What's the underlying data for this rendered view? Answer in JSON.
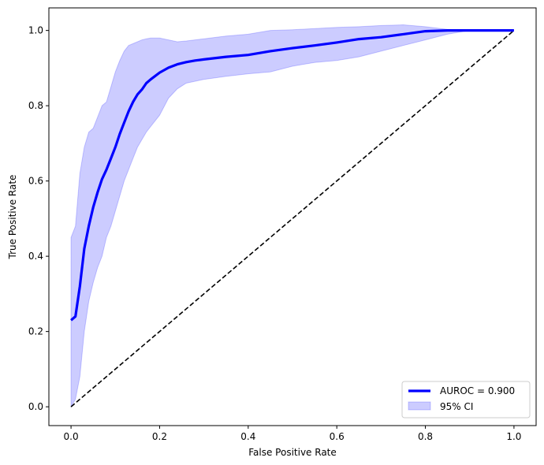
{
  "chart_data": {
    "type": "line",
    "xlabel": "False Positive Rate",
    "ylabel": "True Positive Rate",
    "xlim": [
      -0.05,
      1.05
    ],
    "ylim": [
      -0.05,
      1.06
    ],
    "xticks": [
      "0.0",
      "0.2",
      "0.4",
      "0.6",
      "0.8",
      "1.0"
    ],
    "yticks": [
      "0.0",
      "0.2",
      "0.4",
      "0.6",
      "0.8",
      "1.0"
    ],
    "grid": false,
    "legend_position": "lower-right",
    "series": [
      {
        "name": "AUROC = 0.900",
        "color": "#0000ff",
        "x": [
          0.0,
          0.01,
          0.02,
          0.03,
          0.04,
          0.05,
          0.06,
          0.07,
          0.08,
          0.09,
          0.1,
          0.11,
          0.12,
          0.13,
          0.14,
          0.15,
          0.16,
          0.17,
          0.18,
          0.2,
          0.22,
          0.24,
          0.26,
          0.28,
          0.3,
          0.35,
          0.4,
          0.45,
          0.5,
          0.55,
          0.6,
          0.65,
          0.7,
          0.75,
          0.8,
          0.85,
          0.9,
          0.95,
          1.0
        ],
        "y": [
          0.23,
          0.24,
          0.32,
          0.42,
          0.48,
          0.53,
          0.57,
          0.605,
          0.63,
          0.66,
          0.69,
          0.725,
          0.755,
          0.785,
          0.81,
          0.83,
          0.843,
          0.86,
          0.87,
          0.888,
          0.901,
          0.91,
          0.916,
          0.92,
          0.923,
          0.93,
          0.935,
          0.945,
          0.953,
          0.96,
          0.968,
          0.977,
          0.982,
          0.99,
          0.998,
          1.0,
          1.0,
          1.0,
          1.0
        ]
      },
      {
        "name": "",
        "color": "#000000",
        "style": "dashed",
        "x": [
          0.0,
          1.0
        ],
        "y": [
          0.0,
          1.0
        ]
      }
    ],
    "band": {
      "name": "95% CI",
      "color": "#0000ff",
      "x": [
        0.0,
        0.01,
        0.02,
        0.03,
        0.04,
        0.05,
        0.06,
        0.07,
        0.08,
        0.09,
        0.1,
        0.11,
        0.12,
        0.13,
        0.14,
        0.15,
        0.16,
        0.17,
        0.18,
        0.2,
        0.22,
        0.24,
        0.26,
        0.28,
        0.3,
        0.35,
        0.4,
        0.45,
        0.5,
        0.55,
        0.6,
        0.65,
        0.7,
        0.75,
        0.8,
        0.85,
        0.9,
        0.95,
        1.0
      ],
      "upper": [
        0.45,
        0.48,
        0.62,
        0.69,
        0.73,
        0.74,
        0.77,
        0.8,
        0.81,
        0.85,
        0.89,
        0.92,
        0.945,
        0.96,
        0.965,
        0.97,
        0.975,
        0.978,
        0.98,
        0.98,
        0.975,
        0.97,
        0.972,
        0.975,
        0.978,
        0.985,
        0.99,
        1.0,
        1.002,
        1.005,
        1.008,
        1.01,
        1.013,
        1.015,
        1.01,
        1.003,
        1.0,
        1.0,
        1.0
      ],
      "lower": [
        0.0,
        0.02,
        0.08,
        0.2,
        0.28,
        0.33,
        0.37,
        0.4,
        0.45,
        0.48,
        0.52,
        0.56,
        0.6,
        0.63,
        0.66,
        0.69,
        0.71,
        0.73,
        0.745,
        0.775,
        0.82,
        0.845,
        0.86,
        0.865,
        0.87,
        0.878,
        0.885,
        0.89,
        0.905,
        0.915,
        0.92,
        0.93,
        0.945,
        0.96,
        0.975,
        0.99,
        1.0,
        1.0,
        1.0
      ]
    }
  }
}
